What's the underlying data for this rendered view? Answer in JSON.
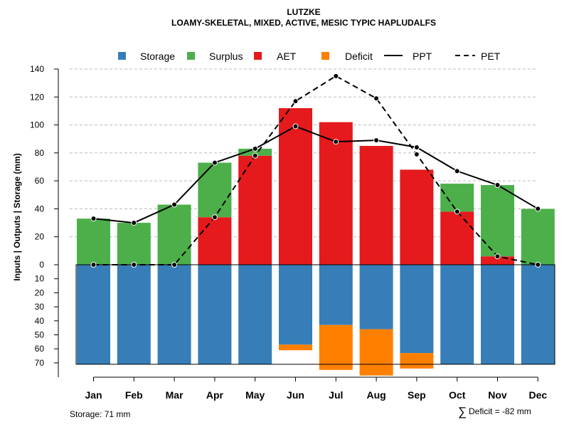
{
  "chart_data": {
    "type": "bar",
    "title": "LUTZKE",
    "subtitle": "LOAMY-SKELETAL, MIXED, ACTIVE, MESIC TYPIC HAPLUDALFS",
    "ylabel": "Inputs | Outputs | Storage    (mm)",
    "categories": [
      "Jan",
      "Feb",
      "Mar",
      "Apr",
      "May",
      "Jun",
      "Jul",
      "Aug",
      "Sep",
      "Oct",
      "Nov",
      "Dec"
    ],
    "upper_ticks": [
      "0",
      "20",
      "40",
      "60",
      "80",
      "100",
      "120",
      "140"
    ],
    "lower_ticks": [
      "10",
      "20",
      "30",
      "40",
      "50",
      "60",
      "70"
    ],
    "ylim_upper": [
      0,
      140
    ],
    "ylim_lower": [
      0,
      71
    ],
    "legend": {
      "storage": "Storage",
      "surplus": "Surplus",
      "aet": "AET",
      "deficit": "Deficit",
      "ppt": "PPT",
      "pet": "PET"
    },
    "series": [
      {
        "name": "AET",
        "values": [
          0,
          0,
          0,
          34,
          78,
          112,
          102,
          85,
          68,
          38,
          6,
          0
        ]
      },
      {
        "name": "Surplus",
        "values": [
          33,
          30,
          43,
          39,
          5,
          0,
          0,
          0,
          0,
          20,
          51,
          40
        ]
      },
      {
        "name": "Storage",
        "values": [
          71,
          71,
          71,
          71,
          71,
          57,
          43,
          46,
          63,
          71,
          71,
          71
        ]
      },
      {
        "name": "Deficit",
        "values": [
          0,
          0,
          0,
          0,
          0,
          4,
          32,
          33,
          11,
          0,
          0,
          0
        ]
      },
      {
        "name": "PPT",
        "values": [
          33,
          30,
          43,
          73,
          83,
          99,
          88,
          89,
          84,
          67,
          57,
          40
        ]
      },
      {
        "name": "PET",
        "values": [
          0,
          0,
          0,
          34,
          78,
          117,
          135,
          119,
          79,
          38,
          6,
          0
        ]
      }
    ],
    "storage_label": "Storage: 71 mm",
    "deficit_sum_label": "Deficit = -82 mm",
    "deficit_sum_symbol": "∑"
  },
  "colors": {
    "storage": "#377EB8",
    "surplus": "#4DAF4A",
    "aet": "#E41A1C",
    "deficit": "#FF7F00",
    "line": "#000000",
    "grid": "#bbbbbb"
  }
}
